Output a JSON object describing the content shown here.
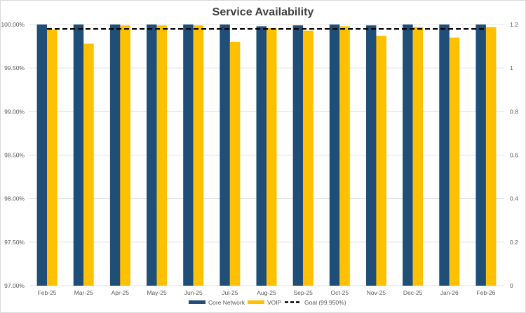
{
  "chart_data": {
    "type": "bar",
    "title": "Service Availability",
    "categories": [
      "Feb-25",
      "Mar-25",
      "Apr-25",
      "May-25",
      "Jun-25",
      "Jul-25",
      "Aug-25",
      "Sep-25",
      "Oct-25",
      "Nov-25",
      "Dec-25",
      "Jan-26",
      "Feb-26"
    ],
    "series": [
      {
        "name": "Core Network",
        "color": "#1f4e79",
        "values": [
          100.0,
          100.0,
          100.0,
          100.0,
          100.0,
          100.0,
          99.98,
          99.99,
          100.0,
          99.99,
          100.0,
          100.0,
          100.0
        ]
      },
      {
        "name": "VOIP",
        "color": "#ffc000",
        "values": [
          99.94,
          99.78,
          99.99,
          99.99,
          99.99,
          99.8,
          99.96,
          99.93,
          99.98,
          99.87,
          99.97,
          99.85,
          99.97
        ]
      }
    ],
    "goal": {
      "name": "Goal (99.950%)",
      "value": 1.18,
      "axis": "secondary",
      "color": "#000000"
    },
    "y_primary": {
      "ylim": [
        97.0,
        100.0
      ],
      "ticks": [
        "97.00%",
        "97.50%",
        "98.00%",
        "98.50%",
        "99.00%",
        "99.50%",
        "100.00%"
      ]
    },
    "y_secondary": {
      "ylim": [
        0,
        1.2
      ],
      "ticks": [
        "0",
        "0.2",
        "0.4",
        "0.6",
        "0.8",
        "1",
        "1.2"
      ]
    },
    "xlabel": "",
    "ylabel": "",
    "grid": true,
    "legend": "bottom"
  }
}
